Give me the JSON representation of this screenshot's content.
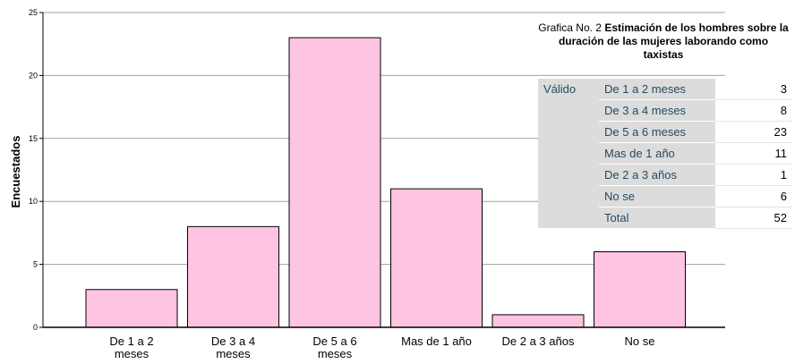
{
  "chart_data": {
    "type": "bar",
    "title": "",
    "xlabel": "",
    "ylabel": "Encuestados",
    "ylim": [
      0,
      25
    ],
    "yticks": [
      0,
      5,
      10,
      15,
      20,
      25
    ],
    "categories": [
      [
        "De 1 a 2",
        "meses"
      ],
      [
        "De 3 a 4",
        "meses"
      ],
      [
        "De 5 a 6",
        "meses"
      ],
      [
        "Mas de 1 año"
      ],
      [
        "De 2 a 3 años"
      ],
      [
        "No se"
      ]
    ],
    "values": [
      3,
      8,
      23,
      11,
      1,
      6
    ],
    "bar_color": "#ffc4e1",
    "grid": true,
    "gridline_color": "#a0a0a0"
  },
  "title_block": {
    "prefix": "Grafica No. 2",
    "bold_text": "Estimación de los hombres sobre la duración de las mujeres laborando como taxistas"
  },
  "table": {
    "group_label": "Válido",
    "rows": [
      {
        "label": "De 1 a 2 meses",
        "value": "3"
      },
      {
        "label": "De 3 a 4 meses",
        "value": "8"
      },
      {
        "label": "De 5 a 6 meses",
        "value": "23"
      },
      {
        "label": "Mas de 1 año",
        "value": "11"
      },
      {
        "label": "De 2 a 3 años",
        "value": "1"
      },
      {
        "label": "No se",
        "value": "6"
      },
      {
        "label": "Total",
        "value": "52"
      }
    ]
  }
}
